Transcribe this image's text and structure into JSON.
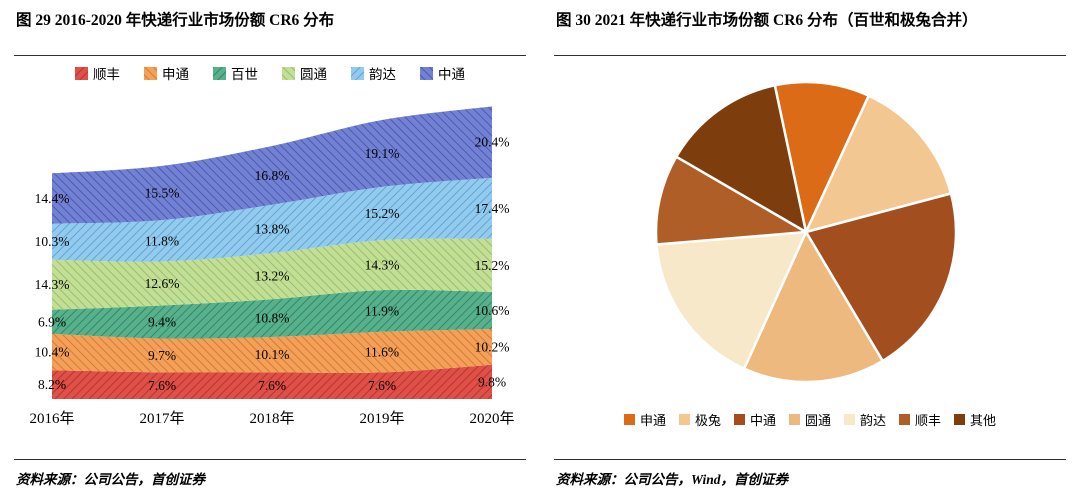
{
  "sources": [
    "资料来源：公司公告，首创证券",
    "资料来源：公司公告，Wind，首创证券"
  ],
  "chart_data": [
    {
      "type": "area",
      "stacked": true,
      "title": "图 29 2016-2020 年快递行业市场份额 CR6 分布",
      "categories": [
        "2016年",
        "2017年",
        "2018年",
        "2019年",
        "2020年"
      ],
      "series": [
        {
          "name": "顺丰",
          "values": [
            8.2,
            7.6,
            7.6,
            7.6,
            9.8
          ],
          "color": "#DE5048",
          "hatch": "#B8342C"
        },
        {
          "name": "申通",
          "values": [
            10.4,
            9.7,
            10.1,
            11.6,
            10.2
          ],
          "color": "#F2A05A",
          "hatch": "#D97A2E"
        },
        {
          "name": "百世",
          "values": [
            6.9,
            9.4,
            10.8,
            11.9,
            10.6
          ],
          "color": "#58B08C",
          "hatch": "#2F8A64"
        },
        {
          "name": "圆通",
          "values": [
            14.3,
            12.6,
            13.2,
            14.3,
            15.2
          ],
          "color": "#C3DE97",
          "hatch": "#99C163"
        },
        {
          "name": "韵达",
          "values": [
            10.3,
            11.8,
            13.8,
            15.2,
            17.4
          ],
          "color": "#94CBED",
          "hatch": "#5AA7DB"
        },
        {
          "name": "中通",
          "values": [
            14.4,
            15.5,
            16.8,
            19.1,
            20.4
          ],
          "color": "#7381D3",
          "hatch": "#4A59B5"
        }
      ],
      "value_suffix": "%",
      "show_value_labels": true,
      "legend_position": "top",
      "grid": false,
      "y_axis_visible": false
    },
    {
      "type": "pie",
      "title": "图 30 2021 年快递行业市场份额 CR6 分布（百世和极兔合并）",
      "start_angle_deg": -12,
      "slices": [
        {
          "name": "申通",
          "value": 10.2,
          "color": "#DC6B17"
        },
        {
          "name": "极兔",
          "value": 14.0,
          "color": "#F3C791"
        },
        {
          "name": "中通",
          "value": 20.6,
          "color": "#A24E1E"
        },
        {
          "name": "圆通",
          "value": 15.3,
          "color": "#EDB97E"
        },
        {
          "name": "韵达",
          "value": 16.9,
          "color": "#F6E8C8"
        },
        {
          "name": "顺丰",
          "value": 9.7,
          "color": "#B05E28"
        },
        {
          "name": "其他",
          "value": 13.3,
          "color": "#7D3D0D"
        }
      ],
      "labels_shown": false,
      "legend_position": "bottom"
    }
  ]
}
